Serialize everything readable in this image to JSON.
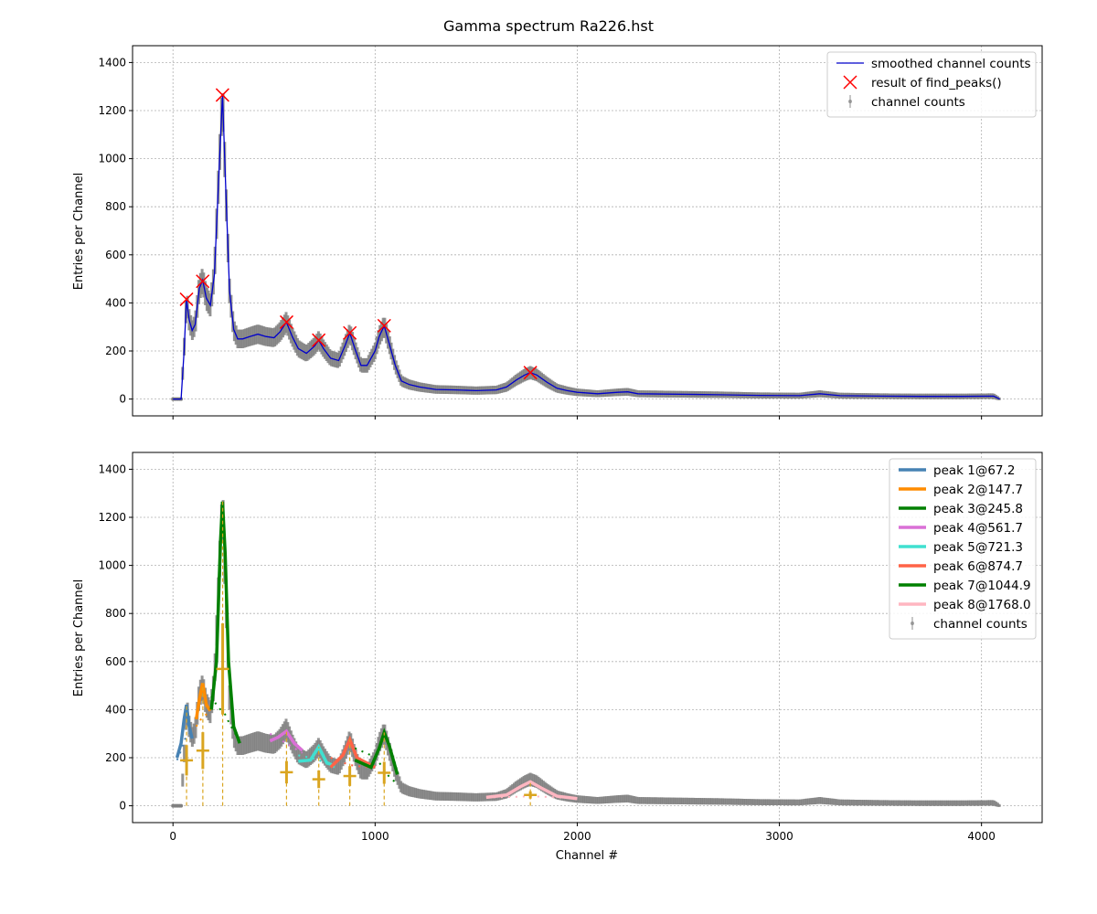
{
  "figure_title": "Gamma spectrum Ra226.hst",
  "colors": {
    "data_points": "#808080",
    "smoothed": "#0000cc",
    "peak_marker": "#ff0000",
    "grid": "#b0b0b0",
    "peak_line": "#daa520"
  },
  "chart_data": [
    {
      "type": "line",
      "ylabel": "Entries per Channel",
      "xlabel": "",
      "xlim": [
        -200,
        4300
      ],
      "ylim": [
        -70,
        1470
      ],
      "yticks": [
        0,
        200,
        400,
        600,
        800,
        1000,
        1200,
        1400
      ],
      "xticks": [
        0,
        1000,
        2000,
        3000,
        4000
      ],
      "show_xtick_labels": false,
      "grid": true,
      "legend_position": "top-right",
      "legend": [
        {
          "label": "smoothed channel counts",
          "style": "line",
          "color": "#0000cc"
        },
        {
          "label": "result of find_peaks()",
          "style": "x",
          "color": "#ff0000"
        },
        {
          "label": "channel counts",
          "style": "errorbar",
          "color": "#808080"
        }
      ],
      "series": [
        {
          "name": "smoothed channel counts",
          "color": "#0000cc",
          "x": [
            0,
            40,
            55,
            67,
            80,
            95,
            110,
            130,
            147,
            165,
            185,
            205,
            225,
            245,
            262,
            280,
            300,
            320,
            345,
            380,
            420,
            460,
            500,
            530,
            561,
            590,
            620,
            660,
            700,
            721,
            745,
            780,
            820,
            850,
            875,
            900,
            930,
            960,
            1000,
            1020,
            1045,
            1070,
            1100,
            1130,
            1170,
            1220,
            1300,
            1400,
            1500,
            1600,
            1650,
            1700,
            1740,
            1768,
            1800,
            1850,
            1900,
            1950,
            2000,
            2100,
            2200,
            2250,
            2300,
            2500,
            2700,
            2900,
            3100,
            3200,
            3300,
            3500,
            3700,
            3900,
            4060,
            4090
          ],
          "y": [
            0,
            0,
            200,
            415,
            330,
            285,
            310,
            460,
            495,
            420,
            390,
            520,
            900,
            1265,
            850,
            450,
            290,
            250,
            250,
            260,
            270,
            260,
            255,
            280,
            320,
            260,
            210,
            190,
            220,
            245,
            210,
            170,
            160,
            220,
            275,
            210,
            140,
            140,
            200,
            260,
            305,
            230,
            140,
            75,
            60,
            50,
            40,
            38,
            35,
            38,
            50,
            80,
            100,
            110,
            100,
            70,
            45,
            35,
            28,
            22,
            28,
            30,
            22,
            20,
            18,
            15,
            14,
            22,
            14,
            12,
            11,
            11,
            12,
            0
          ]
        },
        {
          "name": "result of find_peaks()",
          "color": "#ff0000",
          "x": [
            67,
            147,
            245,
            562,
            721,
            875,
            1045,
            1768
          ],
          "y": [
            415,
            490,
            1265,
            320,
            245,
            275,
            305,
            110
          ]
        }
      ]
    },
    {
      "type": "line",
      "ylabel": "Entries per Channel",
      "xlabel": "Channel #",
      "xlim": [
        -200,
        4300
      ],
      "ylim": [
        -70,
        1470
      ],
      "yticks": [
        0,
        200,
        400,
        600,
        800,
        1000,
        1200,
        1400
      ],
      "xticks": [
        0,
        1000,
        2000,
        3000,
        4000
      ],
      "show_xtick_labels": true,
      "grid": true,
      "legend_position": "top-right",
      "legend": [
        {
          "label": "peak 1@67.2",
          "style": "line",
          "color": "#4682b4"
        },
        {
          "label": "peak 2@147.7",
          "style": "line",
          "color": "#ff8c00"
        },
        {
          "label": "peak 3@245.8",
          "style": "line",
          "color": "#008000"
        },
        {
          "label": "peak 4@561.7",
          "style": "line",
          "color": "#da70d6"
        },
        {
          "label": "peak 5@721.3",
          "style": "line",
          "color": "#40e0d0"
        },
        {
          "label": "peak 6@874.7",
          "style": "line",
          "color": "#ff6347"
        },
        {
          "label": "peak 7@1044.9",
          "style": "line",
          "color": "#008000"
        },
        {
          "label": "peak 8@1768.0",
          "style": "line",
          "color": "#ffb6c1"
        },
        {
          "label": "channel counts",
          "style": "errorbar",
          "color": "#808080"
        }
      ],
      "series": [
        {
          "name": "peak 1@67.2",
          "color": "#4682b4",
          "x": [
            20,
            40,
            55,
            67,
            80,
            95
          ],
          "y": [
            200,
            260,
            360,
            420,
            330,
            280
          ],
          "bg": [
            190,
            230,
            270,
            290,
            300,
            305
          ]
        },
        {
          "name": "peak 2@147.7",
          "color": "#ff8c00",
          "x": [
            115,
            130,
            147,
            165,
            185
          ],
          "y": [
            360,
            440,
            510,
            420,
            395
          ],
          "bg": [
            330,
            350,
            370,
            380,
            390
          ]
        },
        {
          "name": "peak 3@245.8",
          "color": "#008000",
          "x": [
            190,
            215,
            235,
            245,
            258,
            275,
            300,
            330
          ],
          "y": [
            400,
            600,
            1100,
            1265,
            1050,
            600,
            330,
            260
          ],
          "bg": [
            455,
            420,
            400,
            390,
            380,
            350,
            310,
            270
          ]
        },
        {
          "name": "peak 4@561.7",
          "color": "#da70d6",
          "x": [
            480,
            520,
            561,
            600,
            640
          ],
          "y": [
            270,
            285,
            310,
            260,
            230
          ],
          "bg": [
            300,
            280,
            260,
            240,
            220
          ]
        },
        {
          "name": "peak 5@721.3",
          "color": "#40e0d0",
          "x": [
            620,
            680,
            721,
            760,
            800
          ],
          "y": [
            185,
            190,
            245,
            180,
            165
          ],
          "bg": [
            210,
            200,
            190,
            175,
            160
          ]
        },
        {
          "name": "peak 6@874.7",
          "color": "#ff6347",
          "x": [
            780,
            840,
            875,
            910,
            1000
          ],
          "y": [
            160,
            210,
            275,
            200,
            160
          ],
          "bg": [
            200,
            180,
            170,
            165,
            160
          ]
        },
        {
          "name": "peak 7@1044.9",
          "color": "#008000",
          "x": [
            900,
            980,
            1020,
            1045,
            1070,
            1110
          ],
          "y": [
            190,
            160,
            240,
            305,
            250,
            130
          ],
          "bg": [
            240,
            210,
            180,
            150,
            120,
            90
          ]
        },
        {
          "name": "peak 8@1768.0",
          "color": "#ffb6c1",
          "x": [
            1550,
            1650,
            1720,
            1768,
            1820,
            1900,
            2000
          ],
          "y": [
            35,
            45,
            80,
            100,
            75,
            40,
            30
          ],
          "bg": [
            35,
            36,
            38,
            40,
            38,
            35,
            32
          ]
        }
      ],
      "peak_markers": [
        {
          "x": 67.2,
          "height": 420
        },
        {
          "x": 147.7,
          "height": 510
        },
        {
          "x": 245.8,
          "height": 1265
        },
        {
          "x": 561.7,
          "height": 310
        },
        {
          "x": 721.3,
          "height": 245
        },
        {
          "x": 874.7,
          "height": 275
        },
        {
          "x": 1044.9,
          "height": 305
        },
        {
          "x": 1768.0,
          "height": 100
        }
      ]
    }
  ]
}
